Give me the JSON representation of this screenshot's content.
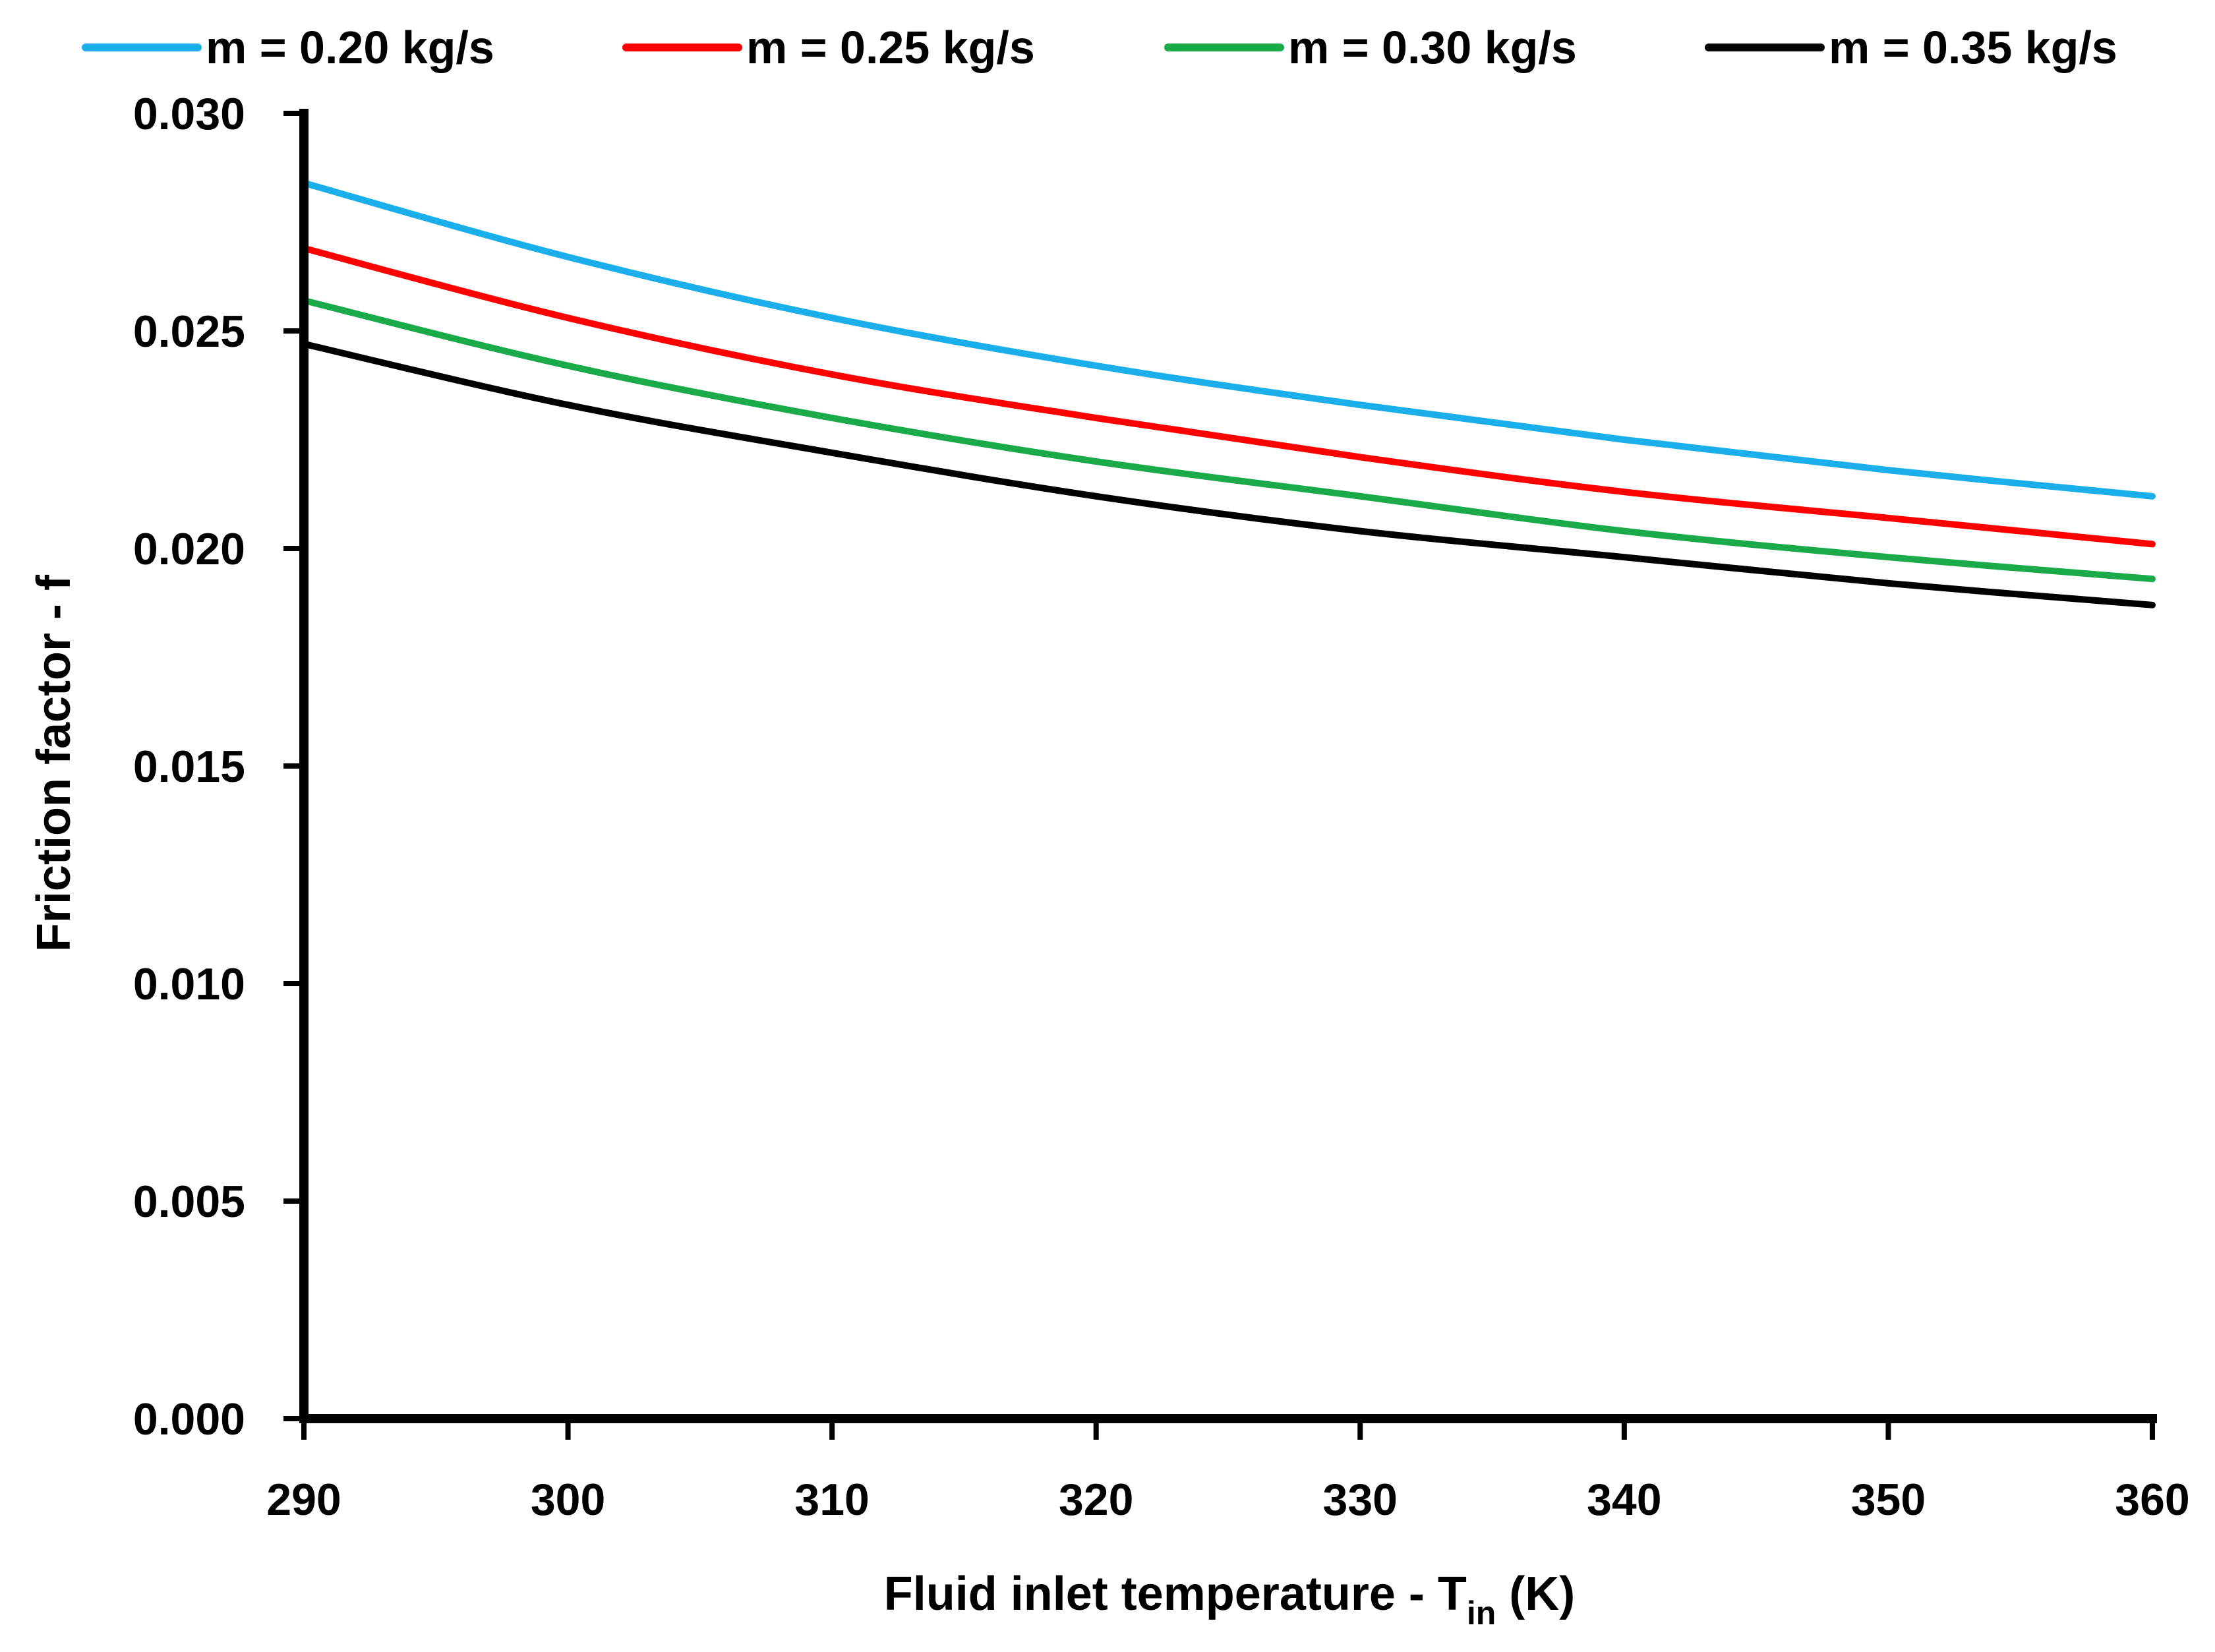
{
  "chart_data": {
    "type": "line",
    "title": "",
    "xlabel": "Fluid inlet temperature - T",
    "xlabel_subscript": "in",
    "xlabel_suffix": " (K)",
    "ylabel": "Friction factor - f",
    "xlim": [
      290,
      360
    ],
    "ylim": [
      0.0,
      0.03
    ],
    "x_ticks": [
      "290",
      "300",
      "310",
      "320",
      "330",
      "340",
      "350",
      "360"
    ],
    "y_ticks": [
      "0.000",
      "0.005",
      "0.010",
      "0.015",
      "0.020",
      "0.025",
      "0.030"
    ],
    "grid": false,
    "legend_position": "top",
    "x": [
      290,
      300,
      310,
      320,
      330,
      340,
      350,
      360
    ],
    "series": [
      {
        "name": "m = 0.20 kg/s",
        "color": "#1AAFEA",
        "values": [
          0.0284,
          0.0267,
          0.0253,
          0.0242,
          0.0233,
          0.0225,
          0.0218,
          0.0212
        ]
      },
      {
        "name": "m = 0.25 kg/s",
        "color": "#FF0000",
        "values": [
          0.0269,
          0.0253,
          0.024,
          0.023,
          0.0221,
          0.0213,
          0.0207,
          0.0201
        ]
      },
      {
        "name": "m = 0.30 kg/s",
        "color": "#1AAA4A",
        "values": [
          0.0257,
          0.0242,
          0.023,
          0.022,
          0.0212,
          0.0204,
          0.0198,
          0.0193
        ]
      },
      {
        "name": "m = 0.35 kg/s",
        "color": "#000000",
        "values": [
          0.0247,
          0.0233,
          0.0222,
          0.0212,
          0.0204,
          0.0198,
          0.0192,
          0.0187
        ]
      }
    ]
  }
}
